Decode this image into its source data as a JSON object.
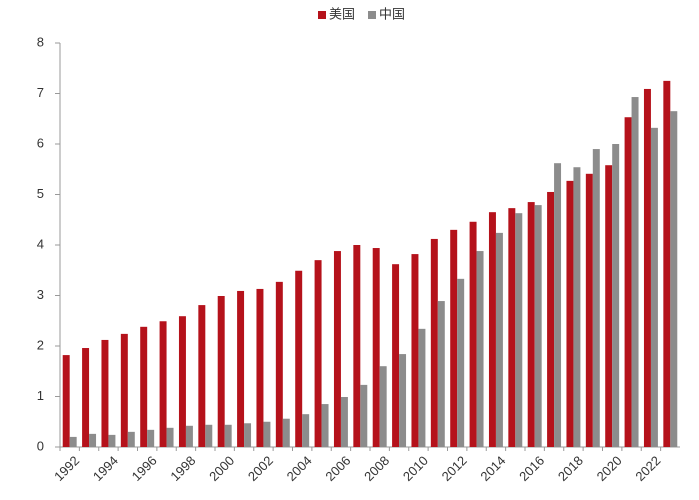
{
  "chart_data": {
    "type": "bar",
    "categories": [
      "1992",
      null,
      "1994",
      null,
      "1996",
      null,
      "1998",
      null,
      "2000",
      null,
      "2002",
      null,
      "2004",
      null,
      "2006",
      null,
      "2008",
      null,
      "2010",
      null,
      "2012",
      null,
      "2014",
      null,
      "2016",
      null,
      "2018",
      null,
      "2020",
      null,
      "2022",
      null
    ],
    "series": [
      {
        "name": "美国",
        "color": "#b5121b",
        "values": [
          1.82,
          1.96,
          2.12,
          2.24,
          2.38,
          2.49,
          2.59,
          2.81,
          2.99,
          3.09,
          3.13,
          3.27,
          3.49,
          3.7,
          3.88,
          4.0,
          3.94,
          3.62,
          3.82,
          4.12,
          4.3,
          4.46,
          4.65,
          4.73,
          4.85,
          5.05,
          5.27,
          5.41,
          5.58,
          6.53,
          7.09,
          7.25
        ]
      },
      {
        "name": "中国",
        "color": "#8c8c8c",
        "values": [
          0.2,
          0.26,
          0.24,
          0.3,
          0.34,
          0.38,
          0.42,
          0.44,
          0.44,
          0.47,
          0.5,
          0.56,
          0.65,
          0.85,
          0.99,
          1.23,
          1.6,
          1.84,
          2.34,
          2.89,
          3.33,
          3.88,
          4.24,
          4.63,
          4.79,
          5.62,
          5.54,
          5.9,
          6.0,
          6.93,
          6.32,
          6.65
        ]
      }
    ],
    "ylim": [
      0,
      8
    ],
    "yticks": [
      0,
      1,
      2,
      3,
      4,
      5,
      6,
      7,
      8
    ],
    "legend": "top"
  }
}
